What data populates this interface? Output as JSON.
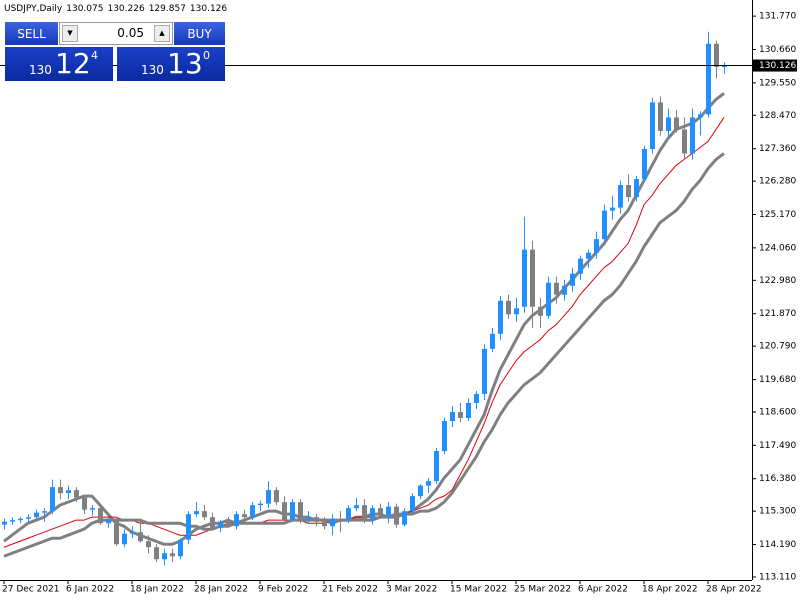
{
  "header": {
    "symbol": "USDJPY,Daily",
    "values": [
      "130.075",
      "130.226",
      "129.857",
      "130.126"
    ]
  },
  "trade_panel": {
    "sell": "SELL",
    "buy": "BUY",
    "lot": "0.05",
    "bid": {
      "big": "130",
      "main": "12",
      "sup": "4"
    },
    "ask": {
      "big": "130",
      "main": "13",
      "sup": "0"
    }
  },
  "chart_data": {
    "type": "candlestick",
    "categories": [
      "27 Dec 2021",
      null,
      null,
      null,
      null,
      null,
      null,
      null,
      "6 Jan 2022",
      null,
      null,
      null,
      null,
      null,
      null,
      null,
      "18 Jan 2022",
      null,
      null,
      null,
      null,
      null,
      null,
      null,
      "28 Jan 2022",
      null,
      null,
      null,
      null,
      null,
      null,
      null,
      "9 Feb 2022",
      null,
      null,
      null,
      null,
      null,
      null,
      null,
      "21 Feb 2022",
      null,
      null,
      null,
      null,
      null,
      null,
      null,
      "3 Mar 2022",
      null,
      null,
      null,
      null,
      null,
      null,
      null,
      "15 Mar 2022",
      null,
      null,
      null,
      null,
      null,
      null,
      null,
      "25 Mar 2022",
      null,
      null,
      null,
      null,
      null,
      null,
      null,
      "6 Apr 2022",
      null,
      null,
      null,
      null,
      null,
      null,
      null,
      "18 Apr 2022",
      null,
      null,
      null,
      null,
      null,
      null,
      null,
      "28 Apr 2022",
      null,
      null
    ],
    "open": [
      114.85,
      114.95,
      115.0,
      115.05,
      115.1,
      115.25,
      115.3,
      116.1,
      115.9,
      116.0,
      115.75,
      115.35,
      115.4,
      114.9,
      115.0,
      114.2,
      114.55,
      114.6,
      114.3,
      114.1,
      113.7,
      113.9,
      113.8,
      114.35,
      115.2,
      115.3,
      115.1,
      114.75,
      114.95,
      114.8,
      115.2,
      115.1,
      115.5,
      115.55,
      116.0,
      115.6,
      115.0,
      115.6,
      115.0,
      115.1,
      114.95,
      114.8,
      115.05,
      115.0,
      115.4,
      115.5,
      115.0,
      115.4,
      115.15,
      115.45,
      114.85,
      115.3,
      115.8,
      116.15,
      116.3,
      117.3,
      118.3,
      118.6,
      118.4,
      118.9,
      119.2,
      120.7,
      121.2,
      122.3,
      121.85,
      122.1,
      124.0,
      122.1,
      121.8,
      122.9,
      122.5,
      122.8,
      123.2,
      123.7,
      123.9,
      124.35,
      125.3,
      125.4,
      126.15,
      125.75,
      126.35,
      127.35,
      128.9,
      127.95,
      128.4,
      128.0,
      127.2,
      128.4,
      128.5,
      130.85,
      130.075
    ],
    "high": [
      115.05,
      115.1,
      115.1,
      115.2,
      115.35,
      115.4,
      116.35,
      116.35,
      116.15,
      116.1,
      115.85,
      115.5,
      115.5,
      115.1,
      115.1,
      114.7,
      114.8,
      114.95,
      114.5,
      114.2,
      114.05,
      114.05,
      114.4,
      115.3,
      115.6,
      115.5,
      115.25,
      115.0,
      115.1,
      115.3,
      115.35,
      115.6,
      115.65,
      116.3,
      116.1,
      115.8,
      115.7,
      115.7,
      115.3,
      115.2,
      115.1,
      115.2,
      115.3,
      115.5,
      115.75,
      115.7,
      115.5,
      115.55,
      115.6,
      115.55,
      115.4,
      115.9,
      116.2,
      116.4,
      117.4,
      118.4,
      118.8,
      118.9,
      119.05,
      119.3,
      120.85,
      121.4,
      122.45,
      122.5,
      122.4,
      125.1,
      124.3,
      122.4,
      123.1,
      123.1,
      123.0,
      123.4,
      123.8,
      124.0,
      124.6,
      125.5,
      125.8,
      126.3,
      126.5,
      126.45,
      127.45,
      129.05,
      129.1,
      128.7,
      128.65,
      128.4,
      128.7,
      128.6,
      131.25,
      130.95,
      130.226
    ],
    "low": [
      114.7,
      114.85,
      114.9,
      114.95,
      115.0,
      114.95,
      115.2,
      115.7,
      115.7,
      115.6,
      115.2,
      115.15,
      114.85,
      114.75,
      114.15,
      114.1,
      114.4,
      114.25,
      113.9,
      113.6,
      113.5,
      113.6,
      113.7,
      114.2,
      115.1,
      115.0,
      114.7,
      114.6,
      114.75,
      114.7,
      114.9,
      115.0,
      115.3,
      115.4,
      115.5,
      114.9,
      114.95,
      114.9,
      114.9,
      114.8,
      114.7,
      114.5,
      114.6,
      114.9,
      115.3,
      114.9,
      114.85,
      115.1,
      114.9,
      114.75,
      114.8,
      115.2,
      115.7,
      115.9,
      116.2,
      117.2,
      118.1,
      118.25,
      118.3,
      118.7,
      119.0,
      120.6,
      121.0,
      121.7,
      121.6,
      121.9,
      121.4,
      121.4,
      121.7,
      122.2,
      122.3,
      122.6,
      123.0,
      123.4,
      123.7,
      124.2,
      125.0,
      125.2,
      125.6,
      125.6,
      126.25,
      127.2,
      127.8,
      127.7,
      127.9,
      127.0,
      127.0,
      127.8,
      128.4,
      129.7,
      129.857
    ],
    "close": [
      114.95,
      115.0,
      115.05,
      115.1,
      115.25,
      115.3,
      116.1,
      115.9,
      116.0,
      115.75,
      115.35,
      115.4,
      114.9,
      115.0,
      114.2,
      114.55,
      114.6,
      114.3,
      114.1,
      113.7,
      113.9,
      113.8,
      114.35,
      115.2,
      115.3,
      115.1,
      114.75,
      114.95,
      114.8,
      115.2,
      115.1,
      115.5,
      115.55,
      116.0,
      115.6,
      115.0,
      115.6,
      115.0,
      115.1,
      114.95,
      114.8,
      115.05,
      115.0,
      115.4,
      115.5,
      115.0,
      115.4,
      115.15,
      115.45,
      114.85,
      115.3,
      115.8,
      116.15,
      116.3,
      117.3,
      118.3,
      118.6,
      118.4,
      118.9,
      119.2,
      120.7,
      121.2,
      122.3,
      121.85,
      122.05,
      124.0,
      122.1,
      121.8,
      122.9,
      122.5,
      122.8,
      123.2,
      123.7,
      123.9,
      124.35,
      125.3,
      125.4,
      126.15,
      125.75,
      126.35,
      127.35,
      128.9,
      127.95,
      128.4,
      128.0,
      127.2,
      128.4,
      128.5,
      130.85,
      130.075,
      130.126
    ],
    "up_color": "#1e90ff",
    "down_color": "#808080",
    "series": [
      {
        "color": "#808080",
        "width": 3,
        "values": [
          114.3,
          114.5,
          114.7,
          114.9,
          115.0,
          115.1,
          115.3,
          115.5,
          115.6,
          115.7,
          115.8,
          115.8,
          115.5,
          115.2,
          114.9,
          114.8,
          114.6,
          114.5,
          114.4,
          114.3,
          114.2,
          114.2,
          114.3,
          114.5,
          114.7,
          114.8,
          114.9,
          114.9,
          115.0,
          114.9,
          115.0,
          115.1,
          115.2,
          115.3,
          115.3,
          115.2,
          115.2,
          115.1,
          115.1,
          115.0,
          115.0,
          114.9,
          115.0,
          115.0,
          115.1,
          115.1,
          115.2,
          115.2,
          115.1,
          115.1,
          115.2,
          115.3,
          115.5,
          115.7,
          116.0,
          116.4,
          116.7,
          117.0,
          117.5,
          118.0,
          118.5,
          119.3,
          120.0,
          120.5,
          121.0,
          121.5,
          121.8,
          122.0,
          122.2,
          122.4,
          122.7,
          123.0,
          123.3,
          123.6,
          123.9,
          124.2,
          124.6,
          125.0,
          125.3,
          125.8,
          126.3,
          126.8,
          127.3,
          127.7,
          128.0,
          128.1,
          128.2,
          128.4,
          128.7,
          129.0,
          129.2
        ]
      },
      {
        "color": "#e00000",
        "width": 1,
        "values": [
          114.1,
          114.2,
          114.3,
          114.4,
          114.5,
          114.6,
          114.7,
          114.8,
          114.9,
          115.0,
          115.0,
          115.1,
          115.1,
          115.1,
          115.1,
          115.0,
          115.0,
          114.9,
          114.9,
          114.8,
          114.7,
          114.6,
          114.5,
          114.5,
          114.5,
          114.6,
          114.7,
          114.8,
          114.9,
          114.9,
          114.9,
          114.9,
          114.9,
          115.0,
          115.0,
          115.0,
          115.0,
          115.0,
          114.9,
          114.9,
          114.9,
          115.0,
          115.0,
          115.0,
          115.1,
          115.1,
          115.1,
          115.1,
          115.1,
          115.2,
          115.2,
          115.3,
          115.4,
          115.5,
          115.7,
          115.8,
          116.0,
          116.5,
          117.0,
          117.6,
          118.2,
          118.9,
          119.5,
          119.9,
          120.3,
          120.6,
          120.8,
          121.0,
          121.3,
          121.5,
          121.8,
          122.1,
          122.5,
          122.8,
          123.1,
          123.4,
          123.6,
          123.9,
          124.2,
          124.8,
          125.5,
          125.8,
          126.2,
          126.5,
          126.8,
          127.0,
          127.2,
          127.4,
          127.6,
          128.0,
          128.4
        ]
      },
      {
        "color": "#808080",
        "width": 3,
        "values": [
          113.8,
          113.9,
          114.0,
          114.1,
          114.2,
          114.3,
          114.4,
          114.4,
          114.5,
          114.6,
          114.7,
          114.9,
          115.0,
          115.0,
          115.0,
          115.0,
          115.0,
          115.0,
          114.9,
          114.9,
          114.9,
          114.9,
          114.9,
          114.8,
          114.8,
          114.7,
          114.7,
          114.8,
          114.8,
          114.9,
          114.9,
          114.9,
          114.9,
          114.9,
          114.9,
          114.9,
          115.0,
          115.0,
          115.0,
          115.0,
          115.0,
          115.0,
          115.0,
          115.0,
          115.0,
          115.0,
          115.0,
          115.1,
          115.1,
          115.2,
          115.2,
          115.2,
          115.3,
          115.3,
          115.4,
          115.6,
          115.9,
          116.3,
          116.7,
          117.1,
          117.6,
          118.0,
          118.5,
          118.9,
          119.2,
          119.5,
          119.7,
          119.9,
          120.2,
          120.5,
          120.8,
          121.1,
          121.4,
          121.7,
          122.0,
          122.3,
          122.5,
          122.8,
          123.2,
          123.6,
          124.1,
          124.5,
          124.9,
          125.1,
          125.3,
          125.6,
          126.0,
          126.3,
          126.7,
          127.0,
          127.2
        ]
      }
    ],
    "current_price": {
      "value": 130.126,
      "label": "130.126"
    },
    "ylim": [
      113.01,
      132.24
    ],
    "yticks": [
      {
        "value": 113.11,
        "label": "113.110"
      },
      {
        "value": 114.19,
        "label": "114.190"
      },
      {
        "value": 115.3,
        "label": "115.300"
      },
      {
        "value": 116.38,
        "label": "116.380"
      },
      {
        "value": 117.49,
        "label": "117.490"
      },
      {
        "value": 118.6,
        "label": "118.600"
      },
      {
        "value": 119.68,
        "label": "119.680"
      },
      {
        "value": 120.79,
        "label": "120.790"
      },
      {
        "value": 121.87,
        "label": "121.870"
      },
      {
        "value": 122.98,
        "label": "122.980"
      },
      {
        "value": 124.06,
        "label": "124.060"
      },
      {
        "value": 125.17,
        "label": "125.170"
      },
      {
        "value": 126.28,
        "label": "126.280"
      },
      {
        "value": 127.36,
        "label": "127.360"
      },
      {
        "value": 128.47,
        "label": "128.470"
      },
      {
        "value": 129.55,
        "label": "129.550"
      },
      {
        "value": 130.66,
        "label": "130.660"
      },
      {
        "value": 131.77,
        "label": "131.770"
      }
    ]
  }
}
